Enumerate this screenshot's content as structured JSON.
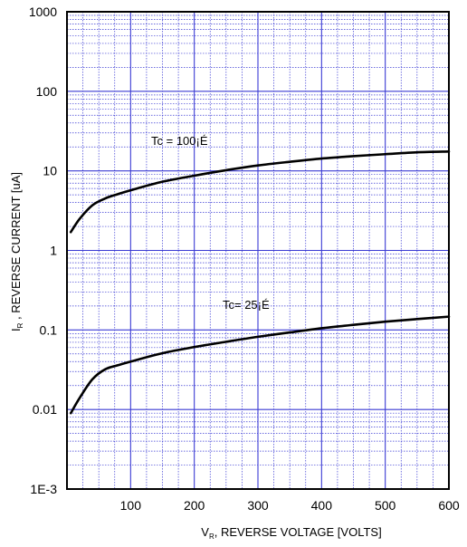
{
  "chart_data": {
    "type": "line",
    "title": "",
    "xlabel": {
      "main": "V",
      "sub": "R",
      "rest": ", REVERSE VOLTAGE [VOLTS]"
    },
    "ylabel": {
      "main": "I",
      "sub": "R",
      "rest": " , REVERSE CURRENT [uA]"
    },
    "xlim": [
      0,
      600
    ],
    "ylim": [
      0.001,
      1000
    ],
    "yscale": "log",
    "grid": true,
    "x_ticks": [
      "100",
      "200",
      "300",
      "400",
      "500",
      "600"
    ],
    "y_ticks": [
      "1E-3",
      "0.01",
      "0.1",
      "1",
      "10",
      "100",
      "1000"
    ],
    "series": [
      {
        "label_text": "Tc = 100¡É",
        "points": [
          [
            6,
            1.7
          ],
          [
            20,
            2.5
          ],
          [
            40,
            3.7
          ],
          [
            60,
            4.5
          ],
          [
            80,
            5.1
          ],
          [
            100,
            5.7
          ],
          [
            150,
            7.3
          ],
          [
            200,
            8.7
          ],
          [
            250,
            10.2
          ],
          [
            300,
            11.7
          ],
          [
            350,
            13.0
          ],
          [
            400,
            14.3
          ],
          [
            450,
            15.3
          ],
          [
            500,
            16.2
          ],
          [
            550,
            17.1
          ],
          [
            600,
            17.5
          ]
        ]
      },
      {
        "label_text": "Tc= 25¡É",
        "points": [
          [
            6,
            0.009
          ],
          [
            20,
            0.014
          ],
          [
            40,
            0.024
          ],
          [
            60,
            0.032
          ],
          [
            80,
            0.036
          ],
          [
            100,
            0.04
          ],
          [
            150,
            0.051
          ],
          [
            200,
            0.061
          ],
          [
            250,
            0.071
          ],
          [
            300,
            0.082
          ],
          [
            350,
            0.093
          ],
          [
            400,
            0.105
          ],
          [
            450,
            0.116
          ],
          [
            500,
            0.127
          ],
          [
            550,
            0.137
          ],
          [
            600,
            0.147
          ]
        ]
      }
    ],
    "colors": {
      "grid": "#3b3bd4",
      "curve": "#000000",
      "frame": "#000000"
    }
  }
}
